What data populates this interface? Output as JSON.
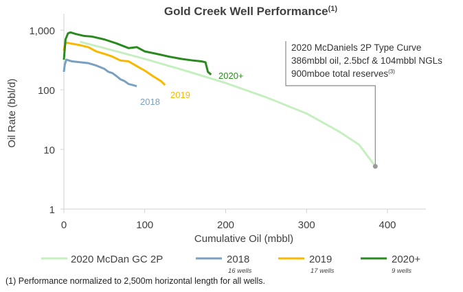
{
  "chart_data": {
    "type": "line",
    "title": "Gold Creek Well Performance",
    "title_sup": "(1)",
    "xlabel": "Cumulative Oil (mbbl)",
    "ylabel": "Oil Rate (bbl/d)",
    "xlim": [
      0,
      450
    ],
    "ylim": [
      1,
      1000
    ],
    "yscale": "log",
    "xticks": [
      "0",
      "100",
      "200",
      "300",
      "400"
    ],
    "xtick_values": [
      0,
      100,
      200,
      300,
      400
    ],
    "yticks": [
      "1",
      "10",
      "100",
      "1,000"
    ],
    "ytick_values": [
      1,
      10,
      100,
      1000
    ],
    "series": [
      {
        "name": "2020 McDan GC 2P",
        "color": "#c6efc0",
        "sub": "",
        "x": [
          20,
          60,
          100,
          150,
          200,
          250,
          300,
          340,
          365,
          385
        ],
        "y": [
          640,
          460,
          330,
          210,
          130,
          75,
          40,
          20,
          12,
          5.2
        ]
      },
      {
        "name": "2018",
        "color": "#7a9fc0",
        "sub": "16 wells",
        "label": "2018",
        "x": [
          0,
          1,
          3,
          10,
          20,
          30,
          40,
          50,
          55,
          60,
          65,
          70,
          75,
          80,
          85,
          90
        ],
        "y": [
          200,
          260,
          320,
          300,
          290,
          280,
          255,
          225,
          200,
          190,
          170,
          150,
          140,
          125,
          120,
          115
        ]
      },
      {
        "name": "2019",
        "color": "#f9b800",
        "sub": "17 wells",
        "label": "2019",
        "x": [
          0,
          1,
          3,
          8,
          20,
          30,
          40,
          50,
          60,
          70,
          80,
          90,
          100,
          110,
          120,
          125
        ],
        "y": [
          450,
          560,
          620,
          600,
          560,
          520,
          440,
          400,
          360,
          310,
          300,
          250,
          210,
          170,
          140,
          120
        ]
      },
      {
        "name": "2020+",
        "color": "#2a8a1f",
        "sub": "9 wells",
        "label": "2020+",
        "x": [
          0,
          2,
          5,
          8,
          15,
          25,
          35,
          50,
          65,
          80,
          90,
          100,
          115,
          130,
          145,
          160,
          170,
          175,
          178,
          182
        ],
        "y": [
          320,
          700,
          880,
          920,
          860,
          800,
          780,
          700,
          600,
          500,
          520,
          440,
          400,
          360,
          330,
          310,
          300,
          290,
          200,
          180
        ]
      }
    ],
    "annotation": {
      "lines": [
        "2020 McDaniels 2P Type Curve",
        "386mbbl oil, 2.5bcf & 104mbbl NGLs",
        "900mboe total reserves"
      ],
      "sup": "(3)",
      "point": {
        "x": 385,
        "y": 5.2
      }
    },
    "legend": "bottom",
    "grid": false
  },
  "footnote": "(1) Performance normalized to 2,500m horizontal length for all wells."
}
